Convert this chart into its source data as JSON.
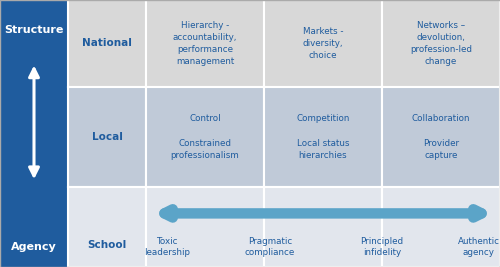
{
  "dark_blue": "#1F5C9E",
  "light_blue_arrow": "#5BA4C8",
  "cell_bg_top": "#D8D8D8",
  "cell_bg_mid": "#C0CAD8",
  "cell_bg_bot": "#E2E6ED",
  "left_col_bg": "#1F5C9E",
  "text_dark_blue": "#1F5C9E",
  "text_white": "#FFFFFF",
  "row_labels": [
    "National",
    "Local",
    "School"
  ],
  "col1_top": "Hierarchy -\naccountability,\nperformance\nmanagement",
  "col2_top": "Markets -\ndiversity,\nchoice",
  "col3_top": "Networks –\ndevolution,\nprofession-led\nchange",
  "col1_mid": "Control\n\nConstrained\nprofessionalism",
  "col2_mid": "Competition\n\nLocal status\nhierarchies",
  "col3_mid": "Collaboration\n\nProvider\ncapture",
  "school_labels": [
    "Toxic\nleadership",
    "Pragmatic\ncompliance",
    "Principled\ninfidelity",
    "Authentic\nagency"
  ],
  "left_label_top": "Structure",
  "left_label_bot": "Agency",
  "figw": 5.0,
  "figh": 2.67,
  "dpi": 100
}
